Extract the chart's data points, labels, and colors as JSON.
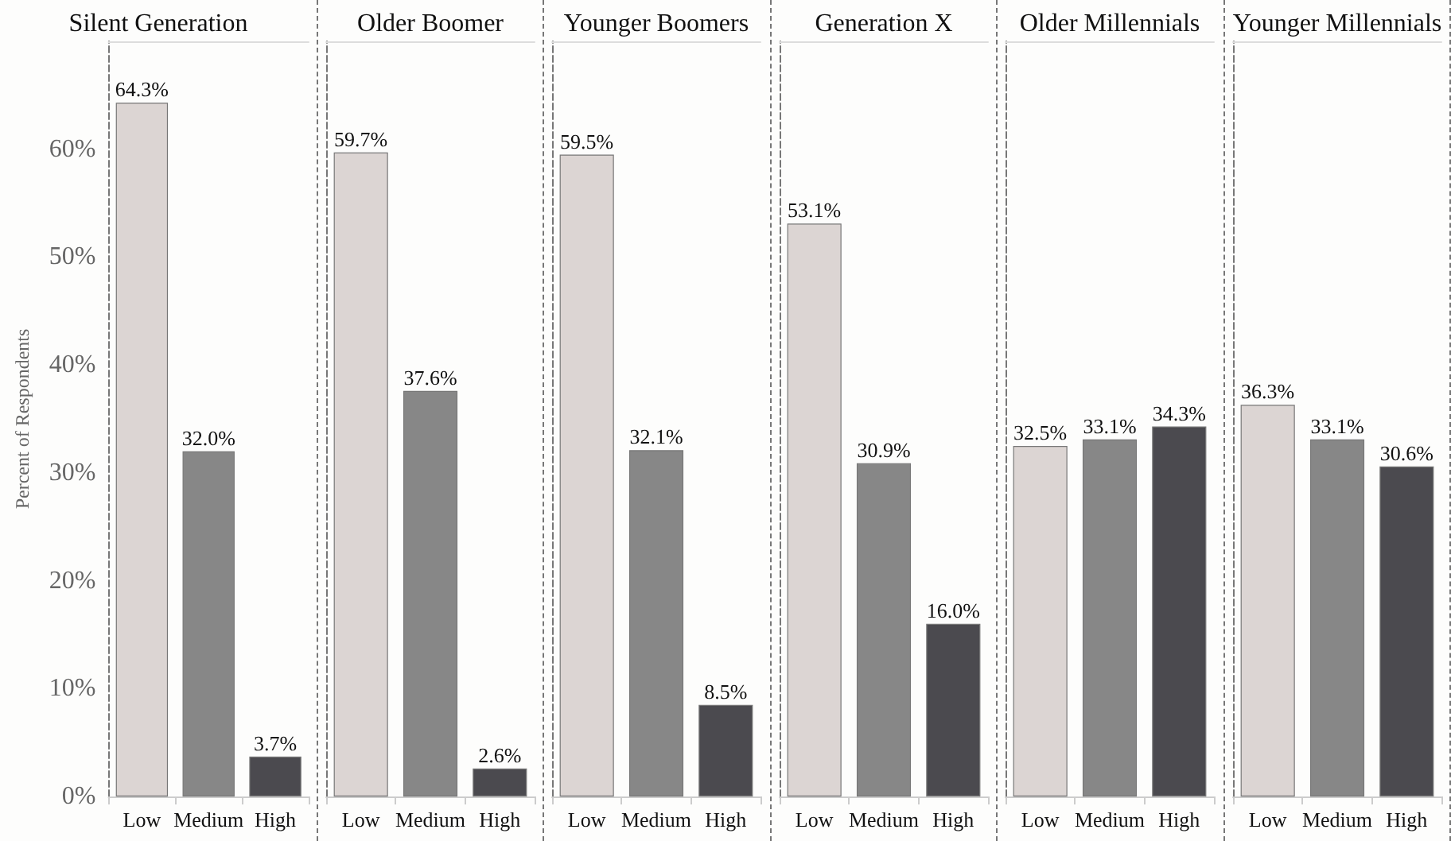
{
  "chart_data": [
    {
      "type": "bar",
      "title": "Silent Generation",
      "ylabel": "Percent of Respondents",
      "categories": [
        "Low",
        "Medium",
        "High"
      ],
      "values": [
        64.3,
        32.0,
        3.7
      ],
      "colors": [
        "#dcd5d3",
        "#878787",
        "#4b4a4f"
      ],
      "value_labels": [
        "64.3%",
        "32.0%",
        "3.7%"
      ],
      "ylim": [
        0,
        70
      ],
      "yticks": [
        {
          "value": 0,
          "label": "0%"
        },
        {
          "value": 10,
          "label": "10%"
        },
        {
          "value": 20,
          "label": "20%"
        },
        {
          "value": 30,
          "label": "30%"
        },
        {
          "value": 40,
          "label": "40%"
        },
        {
          "value": 50,
          "label": "50%"
        },
        {
          "value": 60,
          "label": "60%"
        }
      ],
      "grid": false
    },
    {
      "type": "bar",
      "title": "Older Boomer",
      "categories": [
        "Low",
        "Medium",
        "High"
      ],
      "values": [
        59.7,
        37.6,
        2.6
      ],
      "colors": [
        "#dcd5d3",
        "#878787",
        "#4b4a4f"
      ],
      "value_labels": [
        "59.7%",
        "37.6%",
        "2.6%"
      ],
      "ylim": [
        0,
        70
      ],
      "tick_labels": "x",
      "grid": false
    },
    {
      "type": "bar",
      "title": "Younger Boomers",
      "categories": [
        "Low",
        "Medium",
        "High"
      ],
      "values": [
        59.5,
        32.1,
        8.5
      ],
      "colors": [
        "#dcd5d3",
        "#878787",
        "#4b4a4f"
      ],
      "value_labels": [
        "59.5%",
        "32.1%",
        "8.5%"
      ],
      "ylim": [
        0,
        70
      ],
      "tick_labels": "x",
      "grid": false
    },
    {
      "type": "bar",
      "title": "Generation X",
      "categories": [
        "Low",
        "Medium",
        "High"
      ],
      "values": [
        53.1,
        30.9,
        16.0
      ],
      "colors": [
        "#dcd5d3",
        "#878787",
        "#4b4a4f"
      ],
      "value_labels": [
        "53.1%",
        "30.9%",
        "16.0%"
      ],
      "ylim": [
        0,
        70
      ],
      "tick_labels": "x",
      "grid": false
    },
    {
      "type": "bar",
      "title": "Older Millennials",
      "categories": [
        "Low",
        "Medium",
        "High"
      ],
      "values": [
        32.5,
        33.1,
        34.3
      ],
      "colors": [
        "#dcd5d3",
        "#878787",
        "#4b4a4f"
      ],
      "value_labels": [
        "32.5%",
        "33.1%",
        "34.3%"
      ],
      "ylim": [
        0,
        70
      ],
      "tick_labels": "x",
      "grid": false
    },
    {
      "type": "bar",
      "title": "Younger Millennials",
      "categories": [
        "Low",
        "Medium",
        "High"
      ],
      "values": [
        36.3,
        33.1,
        30.6
      ],
      "colors": [
        "#dcd5d3",
        "#878787",
        "#4b4a4f"
      ],
      "value_labels": [
        "36.3%",
        "33.1%",
        "30.6%"
      ],
      "ylim": [
        0,
        70
      ],
      "tick_labels": "x",
      "grid": false
    }
  ]
}
